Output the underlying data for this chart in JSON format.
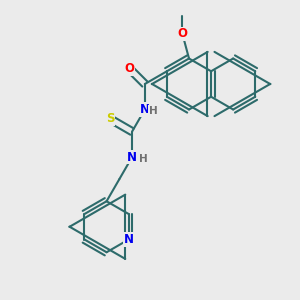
{
  "bg_color": "#ebebeb",
  "bond_color": "#2d6b6b",
  "atom_colors": {
    "O": "#ff0000",
    "N": "#0000ee",
    "S": "#cccc00",
    "H": "#707070",
    "C": "#2d6b6b"
  },
  "lw": 1.5,
  "dbo": 0.012
}
